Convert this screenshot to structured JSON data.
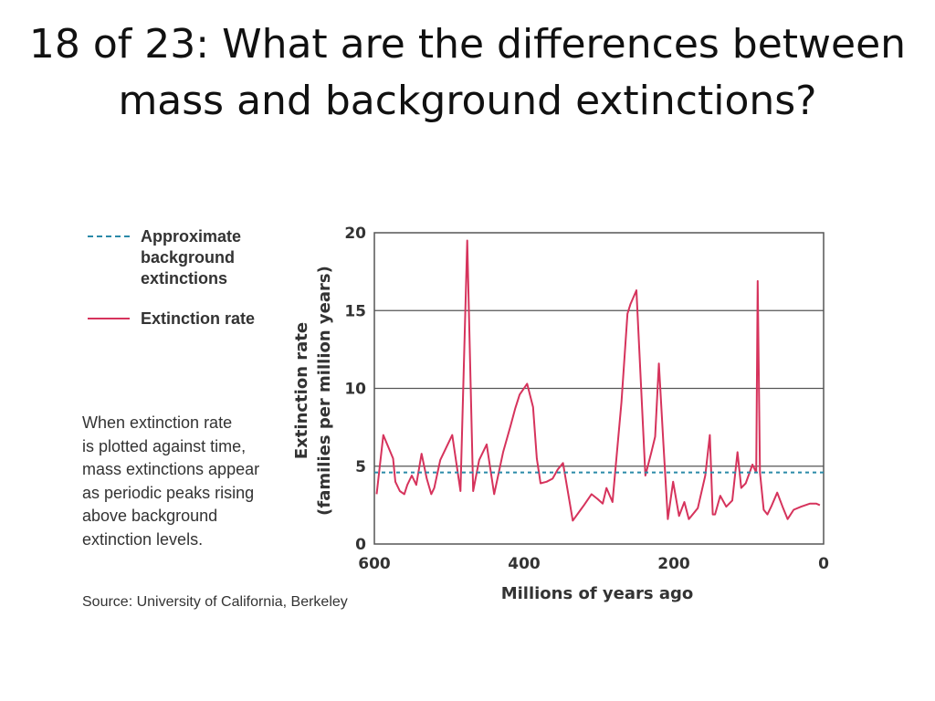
{
  "slide": {
    "title_line1": "18 of 23: What are the differences between",
    "title_line2": "mass and background extinctions?"
  },
  "legend": {
    "background_label_lines": [
      "Approximate",
      "background",
      "extinctions"
    ],
    "extinction_label": "Extinction rate"
  },
  "caption": {
    "lines": [
      "When extinction rate",
      "is plotted against time,",
      "mass extinctions appear",
      "as periodic peaks rising",
      "above background",
      "extinction levels."
    ]
  },
  "source": "Source: University of California, Berkeley",
  "colors": {
    "extinction_line": "#d6335c",
    "background_line": "#2a8aa8",
    "gridline": "#555555",
    "frame": "#555555"
  },
  "chart_data": {
    "type": "line",
    "title": "",
    "xlabel": "Millions of years ago",
    "ylabel_line1": "Extinction rate",
    "ylabel_line2": "(families per million years)",
    "xlim": [
      600,
      0
    ],
    "ylim": [
      0,
      20
    ],
    "x_ticks": [
      600,
      400,
      200,
      0
    ],
    "y_ticks": [
      0,
      5,
      10,
      15,
      20
    ],
    "grid": "horizontal",
    "background_level": 4.6,
    "series": [
      {
        "name": "Extinction rate",
        "x": [
          597,
          588,
          575,
          572,
          566,
          560,
          556,
          550,
          544,
          537,
          530,
          524,
          520,
          512,
          506,
          496,
          485,
          476,
          468,
          460,
          450,
          440,
          428,
          418,
          412,
          406,
          396,
          388,
          383,
          378,
          370,
          362,
          355,
          348,
          335,
          320,
          310,
          302,
          295,
          290,
          282,
          270,
          262,
          258,
          250,
          238,
          230,
          225,
          220,
          214,
          208,
          201,
          193,
          186,
          180,
          168,
          158,
          152,
          148,
          145,
          138,
          130,
          122,
          115,
          110,
          104,
          95,
          90,
          88,
          85,
          80,
          75,
          70,
          62,
          54,
          48,
          40,
          30,
          18,
          10,
          5
        ],
        "values": [
          3.2,
          7.0,
          5.5,
          4.0,
          3.4,
          3.2,
          3.8,
          4.4,
          3.8,
          5.8,
          4.2,
          3.2,
          3.6,
          5.4,
          6.0,
          7.0,
          3.4,
          19.5,
          3.4,
          5.4,
          6.4,
          3.2,
          5.9,
          7.6,
          8.7,
          9.6,
          10.3,
          8.8,
          5.5,
          3.9,
          4.0,
          4.2,
          4.8,
          5.2,
          1.5,
          2.5,
          3.2,
          2.9,
          2.6,
          3.6,
          2.7,
          9.1,
          14.8,
          15.4,
          16.3,
          4.4,
          5.9,
          6.9,
          11.6,
          6.5,
          1.6,
          4.0,
          1.8,
          2.7,
          1.6,
          2.3,
          4.4,
          7.0,
          1.9,
          1.9,
          3.1,
          2.4,
          2.8,
          5.9,
          3.6,
          3.9,
          5.1,
          4.6,
          16.9,
          4.6,
          2.2,
          1.9,
          2.4,
          3.3,
          2.3,
          1.6,
          2.2,
          2.4,
          2.6,
          2.6,
          2.5
        ]
      },
      {
        "name": "Approximate background extinctions",
        "x": [
          600,
          0
        ],
        "values": [
          4.6,
          4.6
        ]
      }
    ]
  }
}
